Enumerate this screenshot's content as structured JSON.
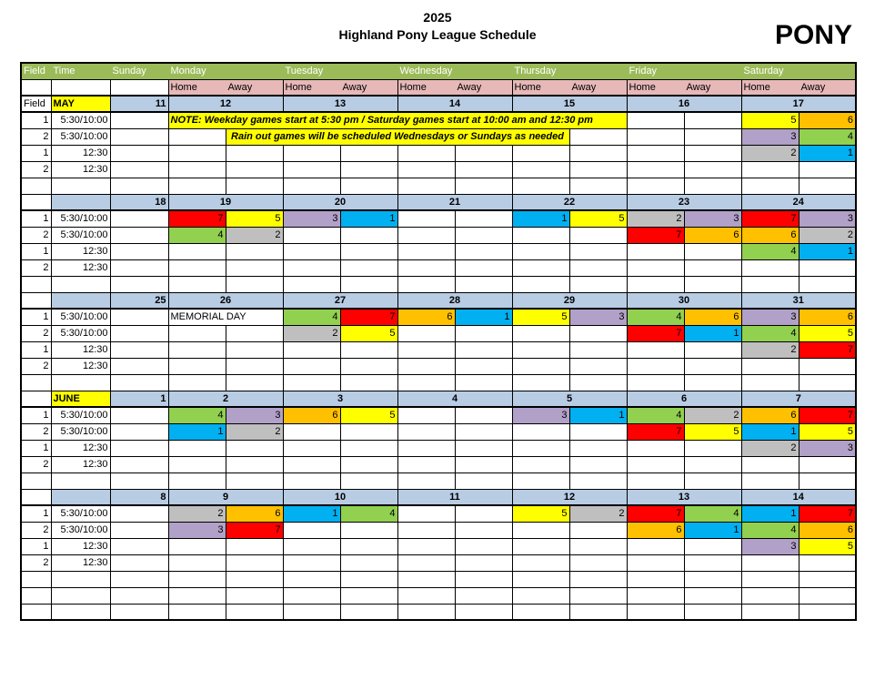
{
  "title": {
    "year": "2025",
    "league": "Highland Pony League Schedule",
    "division": "PONY"
  },
  "grid_header": {
    "field": "Field",
    "time": "Time",
    "days": [
      "Sunday",
      "Monday",
      "Tuesday",
      "Wednesday",
      "Thursday",
      "Friday",
      "Saturday"
    ],
    "home": "Home",
    "away": "Away"
  },
  "time_slots": [
    {
      "field": "1",
      "time": "5:30/10:00"
    },
    {
      "field": "2",
      "time": "5:30/10:00"
    },
    {
      "field": "1",
      "time": "12:30"
    },
    {
      "field": "2",
      "time": "12:30"
    }
  ],
  "notes": [
    {
      "text": "NOTE:  Weekday games start at 5:30 pm  / Saturday games start at 10:00 am and 12:30 pm",
      "skip_before": 0,
      "span": 8
    },
    {
      "text": "Rain out games will be scheduled Wednesdays or Sundays as needed",
      "skip_before": 1,
      "span": 6
    }
  ],
  "team_colors": {
    "1": "#00B0F0",
    "2": "#BFBFBF",
    "3": "#B1A0C7",
    "4": "#92D050",
    "5": "#FFFF00",
    "6": "#FFC000",
    "7": "#FF0000"
  },
  "ui_colors": {
    "header_green": "#9BBB59",
    "home_away_pink": "#E6B8B7",
    "date_blue": "#B8CCE4",
    "note_yellow": "#FFFF00",
    "month_yellow": "#FFFF00"
  },
  "weeks": [
    {
      "field_label": "Field",
      "month_label": "MAY",
      "dates": [
        "11",
        "12",
        "13",
        "14",
        "15",
        "16",
        "17"
      ],
      "rows": [
        [
          null,
          {
            "note": 0
          },
          null,
          null,
          null,
          null,
          {
            "h": 5,
            "a": 6
          }
        ],
        [
          null,
          {
            "note": 1
          },
          null,
          null,
          null,
          null,
          {
            "h": 3,
            "a": 4
          }
        ],
        [
          null,
          null,
          null,
          null,
          null,
          null,
          {
            "h": 2,
            "a": 1
          }
        ],
        [
          null,
          null,
          null,
          null,
          null,
          null,
          null
        ]
      ]
    },
    {
      "field_label": "",
      "month_label": "",
      "dates": [
        "18",
        "19",
        "20",
        "21",
        "22",
        "23",
        "24"
      ],
      "rows": [
        [
          null,
          {
            "h": 7,
            "a": 5
          },
          {
            "h": 3,
            "a": 1
          },
          null,
          {
            "h": 1,
            "a": 5
          },
          {
            "h": 2,
            "a": 3
          },
          {
            "h": 7,
            "a": 3
          }
        ],
        [
          null,
          {
            "h": 4,
            "a": 2
          },
          null,
          null,
          null,
          {
            "h": 7,
            "a": 6
          },
          {
            "h": 6,
            "a": 2
          }
        ],
        [
          null,
          null,
          null,
          null,
          null,
          null,
          {
            "h": 4,
            "a": 1
          }
        ],
        [
          null,
          null,
          null,
          null,
          null,
          null,
          null
        ]
      ]
    },
    {
      "field_label": "",
      "month_label": "",
      "dates": [
        "25",
        "26",
        "27",
        "28",
        "29",
        "30",
        "31"
      ],
      "rows": [
        [
          null,
          {
            "text": "MEMORIAL DAY"
          },
          {
            "h": 4,
            "a": 7
          },
          {
            "h": 6,
            "a": 1
          },
          {
            "h": 5,
            "a": 3
          },
          {
            "h": 4,
            "a": 6
          },
          {
            "h": 3,
            "a": 6
          }
        ],
        [
          null,
          null,
          {
            "h": 2,
            "a": 5
          },
          null,
          null,
          {
            "h": 7,
            "a": 1
          },
          {
            "h": 4,
            "a": 5
          }
        ],
        [
          null,
          null,
          null,
          null,
          null,
          null,
          {
            "h": 2,
            "a": 7
          }
        ],
        [
          null,
          null,
          null,
          null,
          null,
          null,
          null
        ]
      ]
    },
    {
      "field_label": "",
      "month_label": "JUNE",
      "dates": [
        "1",
        "2",
        "3",
        "4",
        "5",
        "6",
        "7"
      ],
      "rows": [
        [
          null,
          {
            "h": 4,
            "a": 3
          },
          {
            "h": 6,
            "a": 5
          },
          null,
          {
            "h": 3,
            "a": 1
          },
          {
            "h": 4,
            "a": 2
          },
          {
            "h": 6,
            "a": 7
          }
        ],
        [
          null,
          {
            "h": 1,
            "a": 2
          },
          null,
          null,
          null,
          {
            "h": 7,
            "a": 5
          },
          {
            "h": 1,
            "a": 5
          }
        ],
        [
          null,
          null,
          null,
          null,
          null,
          null,
          {
            "h": 2,
            "a": 3
          }
        ],
        [
          null,
          null,
          null,
          null,
          null,
          null,
          null
        ]
      ]
    },
    {
      "field_label": "",
      "month_label": "",
      "dates": [
        "8",
        "9",
        "10",
        "11",
        "12",
        "13",
        "14"
      ],
      "rows": [
        [
          null,
          {
            "h": 2,
            "a": 6
          },
          {
            "h": 1,
            "a": 4
          },
          null,
          {
            "h": 5,
            "a": 2
          },
          {
            "h": 7,
            "a": 4
          },
          {
            "h": 1,
            "a": 7
          }
        ],
        [
          null,
          {
            "h": 3,
            "a": 7
          },
          null,
          null,
          null,
          {
            "h": 6,
            "a": 1
          },
          {
            "h": 4,
            "a": 6
          }
        ],
        [
          null,
          null,
          null,
          null,
          null,
          null,
          {
            "h": 3,
            "a": 5
          }
        ],
        [
          null,
          null,
          null,
          null,
          null,
          null,
          null
        ]
      ]
    }
  ]
}
